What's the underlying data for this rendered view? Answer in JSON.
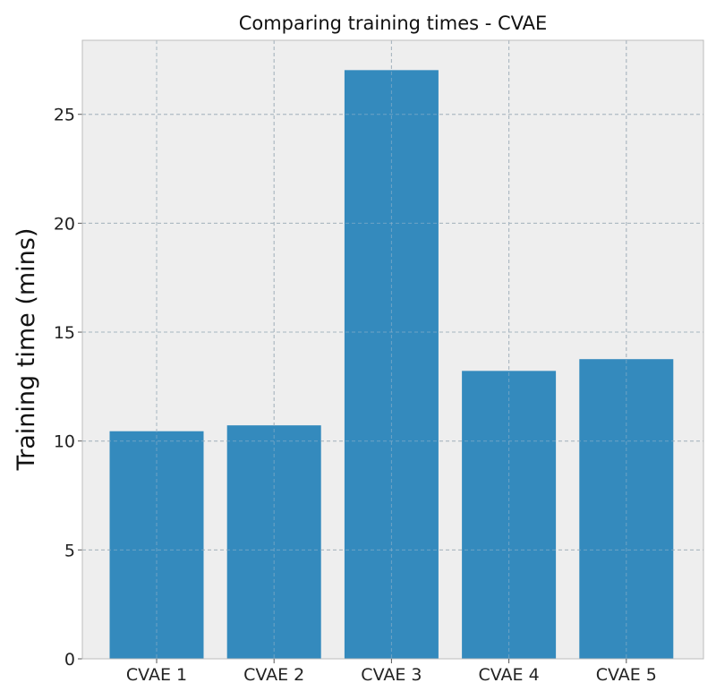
{
  "chart_data": {
    "type": "bar",
    "title": "Comparing training times - CVAE",
    "xlabel": "",
    "ylabel": "Training time (mins)",
    "categories": [
      "CVAE 1",
      "CVAE 2",
      "CVAE 3",
      "CVAE 4",
      "CVAE 5"
    ],
    "values": [
      10.45,
      10.72,
      27.03,
      13.22,
      13.76
    ],
    "ylim": [
      0,
      28.4
    ],
    "yticks": [
      0,
      5,
      10,
      15,
      20,
      25
    ],
    "grid": true,
    "bar_color": "#348abd",
    "background_color": "#eeeeee",
    "grid_color": "#b2b2b2"
  }
}
